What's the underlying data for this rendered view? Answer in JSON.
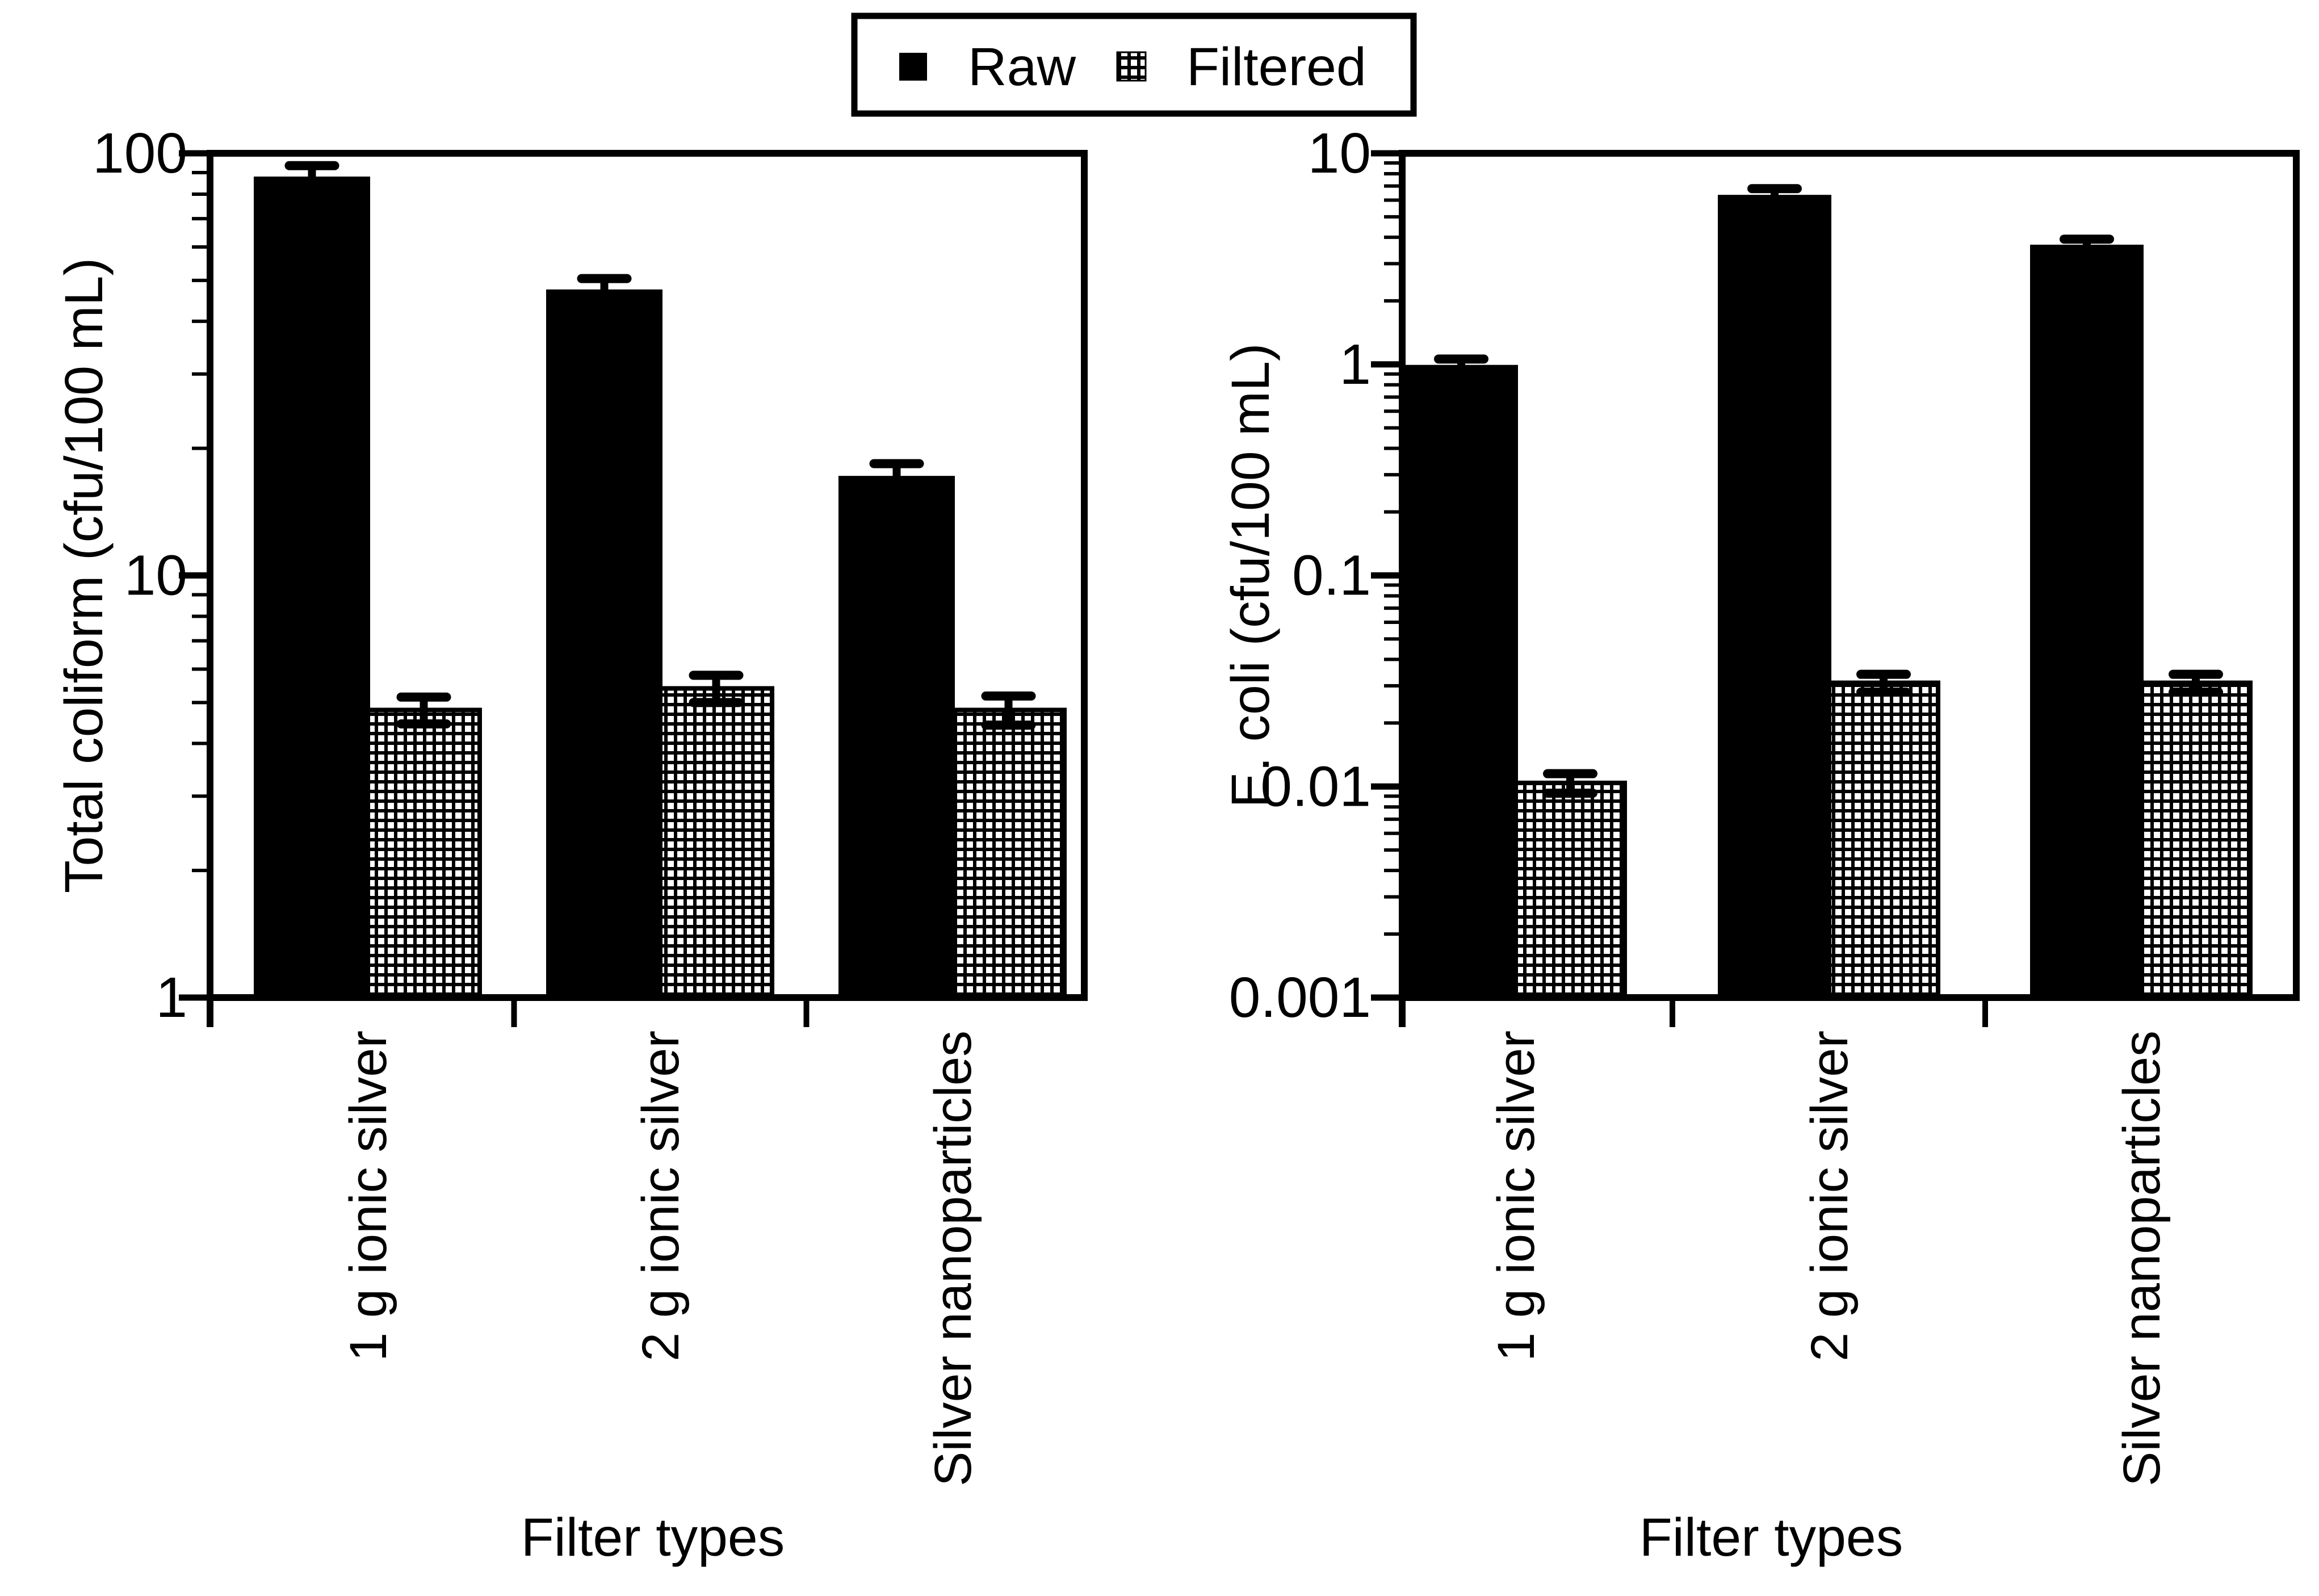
{
  "page": {
    "background": "#ffffff",
    "foreground": "#000000"
  },
  "legend": {
    "items": [
      {
        "label": "Raw",
        "swatch": "solid-black-square"
      },
      {
        "label": "Filtered",
        "swatch": "checkered-square"
      }
    ]
  },
  "chart_data": [
    {
      "id": "total-coliform",
      "type": "bar",
      "y_scale": "log",
      "ylabel": "Total coliform (cfu/100 mL)",
      "xlabel": "Filter types",
      "ylim": [
        1,
        100
      ],
      "grid": false,
      "legend_position": "top-center-above-figure",
      "categories": [
        "1 g ionic silver",
        "2 g ionic silver",
        "Silver nanoparticles"
      ],
      "yticks": [
        {
          "value": 100,
          "label": "100"
        },
        {
          "value": 10,
          "label": "10"
        },
        {
          "value": 1,
          "label": "1"
        }
      ],
      "series": [
        {
          "name": "Raw",
          "fill": "solid",
          "values": [
            87,
            47,
            17
          ],
          "error": [
            6.5,
            3.5,
            1.4
          ]
        },
        {
          "name": "Filtered",
          "fill": "checker",
          "values": [
            4.8,
            5.4,
            4.8
          ],
          "error": [
            0.35,
            0.4,
            0.38
          ]
        }
      ]
    },
    {
      "id": "e-coli",
      "type": "bar",
      "y_scale": "log",
      "ylabel": "E. coli (cfu/100 mL)",
      "xlabel": "Filter types",
      "ylim": [
        0.001,
        10
      ],
      "grid": false,
      "legend_position": "top-center-above-figure",
      "categories": [
        "1 g ionic silver",
        "2 g ionic silver",
        "Silver nanoparticles"
      ],
      "yticks": [
        {
          "value": 10,
          "label": "10"
        },
        {
          "value": 1,
          "label": "1"
        },
        {
          "value": 0.1,
          "label": "0.1"
        },
        {
          "value": 0.01,
          "label": "0.01"
        },
        {
          "value": 0.001,
          "label": "0.001"
        }
      ],
      "series": [
        {
          "name": "Raw",
          "fill": "solid",
          "values": [
            0.97,
            6.2,
            3.6
          ],
          "error": [
            0.09,
            0.6,
            0.32
          ]
        },
        {
          "name": "Filtered",
          "fill": "checker",
          "values": [
            0.0104,
            0.031,
            0.031
          ],
          "error": [
            0.0011,
            0.003,
            0.003
          ]
        }
      ]
    }
  ]
}
